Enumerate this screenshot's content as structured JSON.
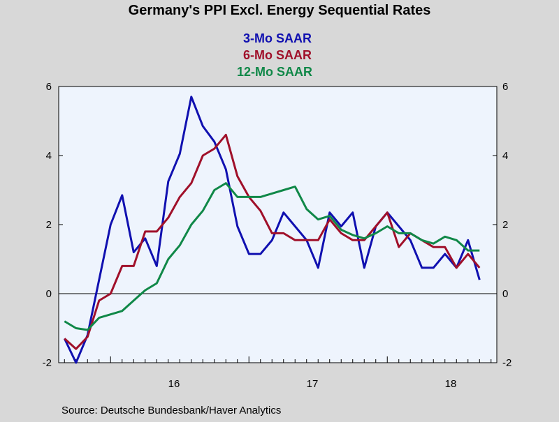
{
  "colors": {
    "background": "#d8d8d8",
    "plot_background": "#eef4fd",
    "series_3mo": "#1010b0",
    "series_6mo": "#a0102a",
    "series_12mo": "#108848",
    "axis": "#000000"
  },
  "chart_data": {
    "type": "line",
    "title": "Germany's PPI Excl. Energy Sequential Rates",
    "xlabel": "",
    "ylabel": "",
    "source": "Source:  Deutsche Bundesbank/Haver Analytics",
    "ylim": [
      -2,
      6
    ],
    "y_ticks": [
      -2,
      0,
      2,
      4,
      6
    ],
    "y_tick_labels": [
      "-2",
      "0",
      "2",
      "4",
      "6"
    ],
    "zero_line": true,
    "grid": false,
    "legend_placement": "top-center",
    "x_start": "2015-09",
    "x_end": "2018-10",
    "year_labels": [
      "16",
      "17",
      "18"
    ],
    "x": [
      "2015-09",
      "2015-10",
      "2015-11",
      "2015-12",
      "2016-01",
      "2016-02",
      "2016-03",
      "2016-04",
      "2016-05",
      "2016-06",
      "2016-07",
      "2016-08",
      "2016-09",
      "2016-10",
      "2016-11",
      "2016-12",
      "2017-01",
      "2017-02",
      "2017-03",
      "2017-04",
      "2017-05",
      "2017-06",
      "2017-07",
      "2017-08",
      "2017-09",
      "2017-10",
      "2017-11",
      "2017-12",
      "2018-01",
      "2018-02",
      "2018-03",
      "2018-04",
      "2018-05",
      "2018-06",
      "2018-07",
      "2018-08",
      "2018-09",
      "2018-10"
    ],
    "series": [
      {
        "name": "3-Mo SAAR",
        "color_key": "series_3mo",
        "values": [
          -1.3,
          -2.0,
          -1.2,
          0.4,
          2.0,
          2.85,
          1.2,
          1.6,
          0.8,
          3.25,
          4.05,
          5.7,
          4.85,
          4.4,
          3.6,
          1.95,
          1.15,
          1.15,
          1.55,
          2.35,
          1.95,
          1.55,
          0.75,
          2.35,
          1.95,
          2.35,
          0.75,
          1.95,
          2.35,
          1.95,
          1.55,
          0.75,
          0.75,
          1.15,
          0.75,
          1.55,
          0.4,
          null
        ]
      },
      {
        "name": "6-Mo SAAR",
        "color_key": "series_6mo",
        "values": [
          -1.3,
          -1.6,
          -1.25,
          -0.2,
          0.0,
          0.8,
          0.8,
          1.8,
          1.8,
          2.2,
          2.8,
          3.2,
          4.0,
          4.2,
          4.6,
          3.4,
          2.8,
          2.4,
          1.75,
          1.75,
          1.55,
          1.55,
          1.55,
          2.15,
          1.75,
          1.55,
          1.55,
          1.95,
          2.35,
          1.35,
          1.75,
          1.55,
          1.35,
          1.35,
          0.75,
          1.15,
          0.75,
          null
        ]
      },
      {
        "name": "12-Mo SAAR",
        "color_key": "series_12mo",
        "values": [
          -0.8,
          -1.0,
          -1.05,
          -0.7,
          -0.6,
          -0.5,
          -0.2,
          0.1,
          0.3,
          1.0,
          1.4,
          2.0,
          2.4,
          3.0,
          3.2,
          2.8,
          2.8,
          2.8,
          2.9,
          3.0,
          3.1,
          2.45,
          2.15,
          2.25,
          1.85,
          1.7,
          1.6,
          1.75,
          1.95,
          1.75,
          1.75,
          1.55,
          1.45,
          1.65,
          1.55,
          1.25,
          1.25,
          null
        ]
      }
    ]
  }
}
